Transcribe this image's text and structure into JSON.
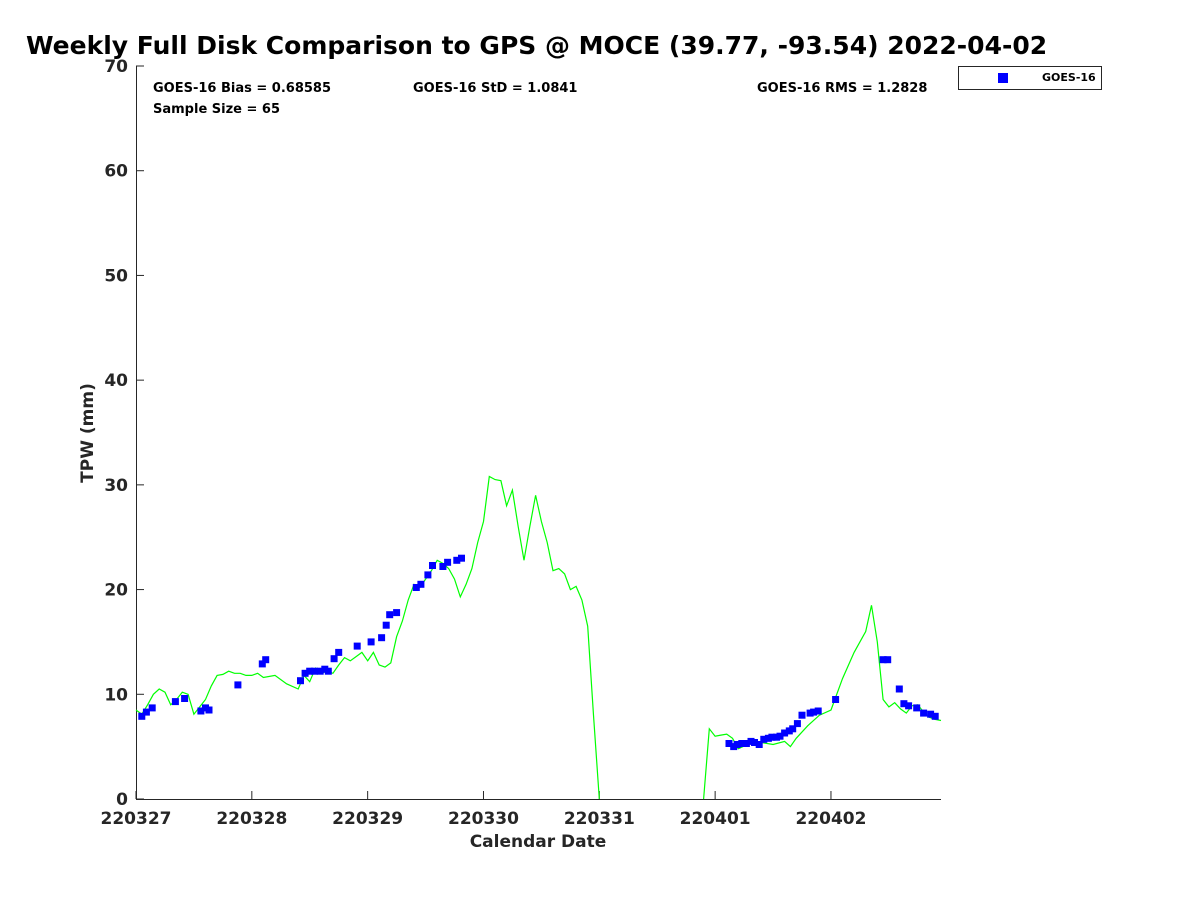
{
  "chart_data": {
    "type": "scatter",
    "title": "Weekly Full Disk Comparison to GPS @ MOCE (39.77, -93.54) 2022-04-02",
    "xlabel": "Calendar Date",
    "ylabel": "TPW (mm)",
    "xlim": [
      0,
      6.95
    ],
    "ylim": [
      0,
      70
    ],
    "yticks": [
      "0",
      "10",
      "20",
      "30",
      "40",
      "50",
      "60",
      "70"
    ],
    "xticks": [
      "220327",
      "220328",
      "220329",
      "220330",
      "220331",
      "220401",
      "220402"
    ],
    "legend": {
      "position": "top-right",
      "entries": [
        "GOES-16"
      ]
    },
    "colors": {
      "goes": "#0000ff",
      "gps": "#00ff00",
      "axis": "#262626"
    },
    "stats": {
      "bias": "GOES-16 Bias = 0.68585",
      "std": "GOES-16 StD = 1.0841",
      "rms": "GOES-16 RMS = 1.2828",
      "sample": "Sample Size = 65"
    },
    "series": [
      {
        "name": "GOES-16",
        "kind": "markers",
        "x": [
          0.05,
          0.09,
          0.14,
          0.34,
          0.42,
          0.56,
          0.6,
          0.63,
          0.88,
          1.09,
          1.12,
          1.42,
          1.46,
          1.5,
          1.54,
          1.59,
          1.63,
          1.66,
          1.71,
          1.75,
          1.91,
          2.03,
          2.12,
          2.16,
          2.19,
          2.25,
          2.42,
          2.46,
          2.52,
          2.56,
          2.65,
          2.69,
          2.77,
          2.81,
          5.12,
          5.16,
          5.19,
          5.23,
          5.27,
          5.31,
          5.34,
          5.38,
          5.42,
          5.46,
          5.49,
          5.53,
          5.56,
          5.6,
          5.64,
          5.67,
          5.71,
          5.75,
          5.82,
          5.85,
          5.89,
          6.04,
          6.45,
          6.49,
          6.59,
          6.63,
          6.67,
          6.74,
          6.8,
          6.86,
          6.9
        ],
        "y": [
          7.9,
          8.3,
          8.7,
          9.3,
          9.6,
          8.4,
          8.7,
          8.5,
          10.9,
          12.9,
          13.3,
          11.3,
          12.0,
          12.2,
          12.2,
          12.2,
          12.4,
          12.2,
          13.4,
          14.0,
          14.6,
          15.0,
          15.4,
          16.6,
          17.6,
          17.8,
          20.2,
          20.5,
          21.4,
          22.3,
          22.2,
          22.6,
          22.8,
          23.0,
          5.3,
          5.0,
          5.2,
          5.3,
          5.3,
          5.5,
          5.4,
          5.2,
          5.7,
          5.8,
          5.9,
          5.9,
          6.0,
          6.3,
          6.5,
          6.7,
          7.2,
          8.0,
          8.2,
          8.3,
          8.4,
          9.5,
          13.3,
          13.3,
          10.5,
          9.1,
          8.9,
          8.7,
          8.2,
          8.1,
          7.9
        ]
      },
      {
        "name": "GPS",
        "kind": "line",
        "x": [
          0.0,
          0.05,
          0.1,
          0.15,
          0.2,
          0.25,
          0.3,
          0.35,
          0.4,
          0.45,
          0.5,
          0.55,
          0.6,
          0.65,
          0.7,
          0.75,
          0.8,
          0.85,
          0.9,
          0.95,
          1.0,
          1.05,
          1.1,
          1.2,
          1.3,
          1.4,
          1.45,
          1.5,
          1.55,
          1.6,
          1.65,
          1.7,
          1.75,
          1.8,
          1.85,
          1.9,
          1.95,
          2.0,
          2.05,
          2.1,
          2.15,
          2.2,
          2.25,
          2.3,
          2.35,
          2.4,
          2.45,
          2.5,
          2.55,
          2.6,
          2.65,
          2.7,
          2.75,
          2.8,
          2.85,
          2.9,
          2.95,
          3.0,
          3.05,
          3.1,
          3.15,
          3.2,
          3.25,
          3.3,
          3.35,
          3.4,
          3.45,
          3.5,
          3.55,
          3.6,
          3.65,
          3.7,
          3.75,
          3.8,
          3.85,
          3.9,
          3.95,
          4.0,
          4.05,
          4.1,
          4.15,
          4.2,
          4.25,
          4.3,
          4.35,
          4.4,
          4.45,
          4.5,
          4.55,
          4.6,
          4.65,
          4.7,
          4.75,
          4.8,
          4.85,
          4.9,
          4.95,
          5.0,
          5.05,
          5.1,
          5.15,
          5.2,
          5.3,
          5.4,
          5.5,
          5.6,
          5.65,
          5.7,
          5.8,
          5.9,
          6.0,
          6.1,
          6.2,
          6.3,
          6.35,
          6.4,
          6.45,
          6.5,
          6.55,
          6.6,
          6.65,
          6.7,
          6.75,
          6.8,
          6.85,
          6.9,
          6.95
        ],
        "y": [
          8.5,
          8.1,
          9.0,
          10.0,
          10.5,
          10.2,
          9.0,
          9.5,
          10.2,
          10.0,
          8.1,
          8.8,
          9.5,
          10.8,
          11.8,
          11.9,
          12.2,
          12.0,
          12.0,
          11.8,
          11.8,
          12.0,
          11.6,
          11.8,
          11.0,
          10.5,
          11.8,
          11.2,
          12.5,
          12.0,
          12.2,
          12.0,
          12.8,
          13.5,
          13.2,
          13.6,
          14.0,
          13.2,
          14.0,
          12.8,
          12.6,
          13.0,
          15.5,
          17.0,
          19.0,
          20.5,
          20.2,
          21.0,
          21.8,
          22.8,
          22.5,
          22.0,
          21.0,
          19.3,
          20.5,
          22.0,
          24.5,
          26.5,
          30.8,
          30.5,
          30.4,
          28.0,
          29.5,
          26.0,
          22.8,
          26.0,
          29.0,
          26.5,
          24.5,
          21.8,
          22.0,
          21.5,
          20.0,
          20.3,
          19.0,
          16.5,
          8.0,
          0.0,
          null,
          null,
          null,
          null,
          null,
          null,
          null,
          null,
          null,
          null,
          null,
          null,
          null,
          null,
          null,
          null,
          null,
          0.0,
          6.7,
          6.0,
          6.1,
          6.2,
          5.8,
          4.8,
          5.3,
          5.4,
          5.2,
          5.5,
          5.0,
          5.8,
          7.0,
          8.0,
          8.5,
          11.5,
          14.0,
          16.0,
          18.5,
          15.0,
          9.5,
          8.8,
          9.2,
          8.6,
          8.2,
          8.9,
          9.0,
          8.3,
          7.8,
          7.6,
          7.5
        ]
      }
    ]
  }
}
